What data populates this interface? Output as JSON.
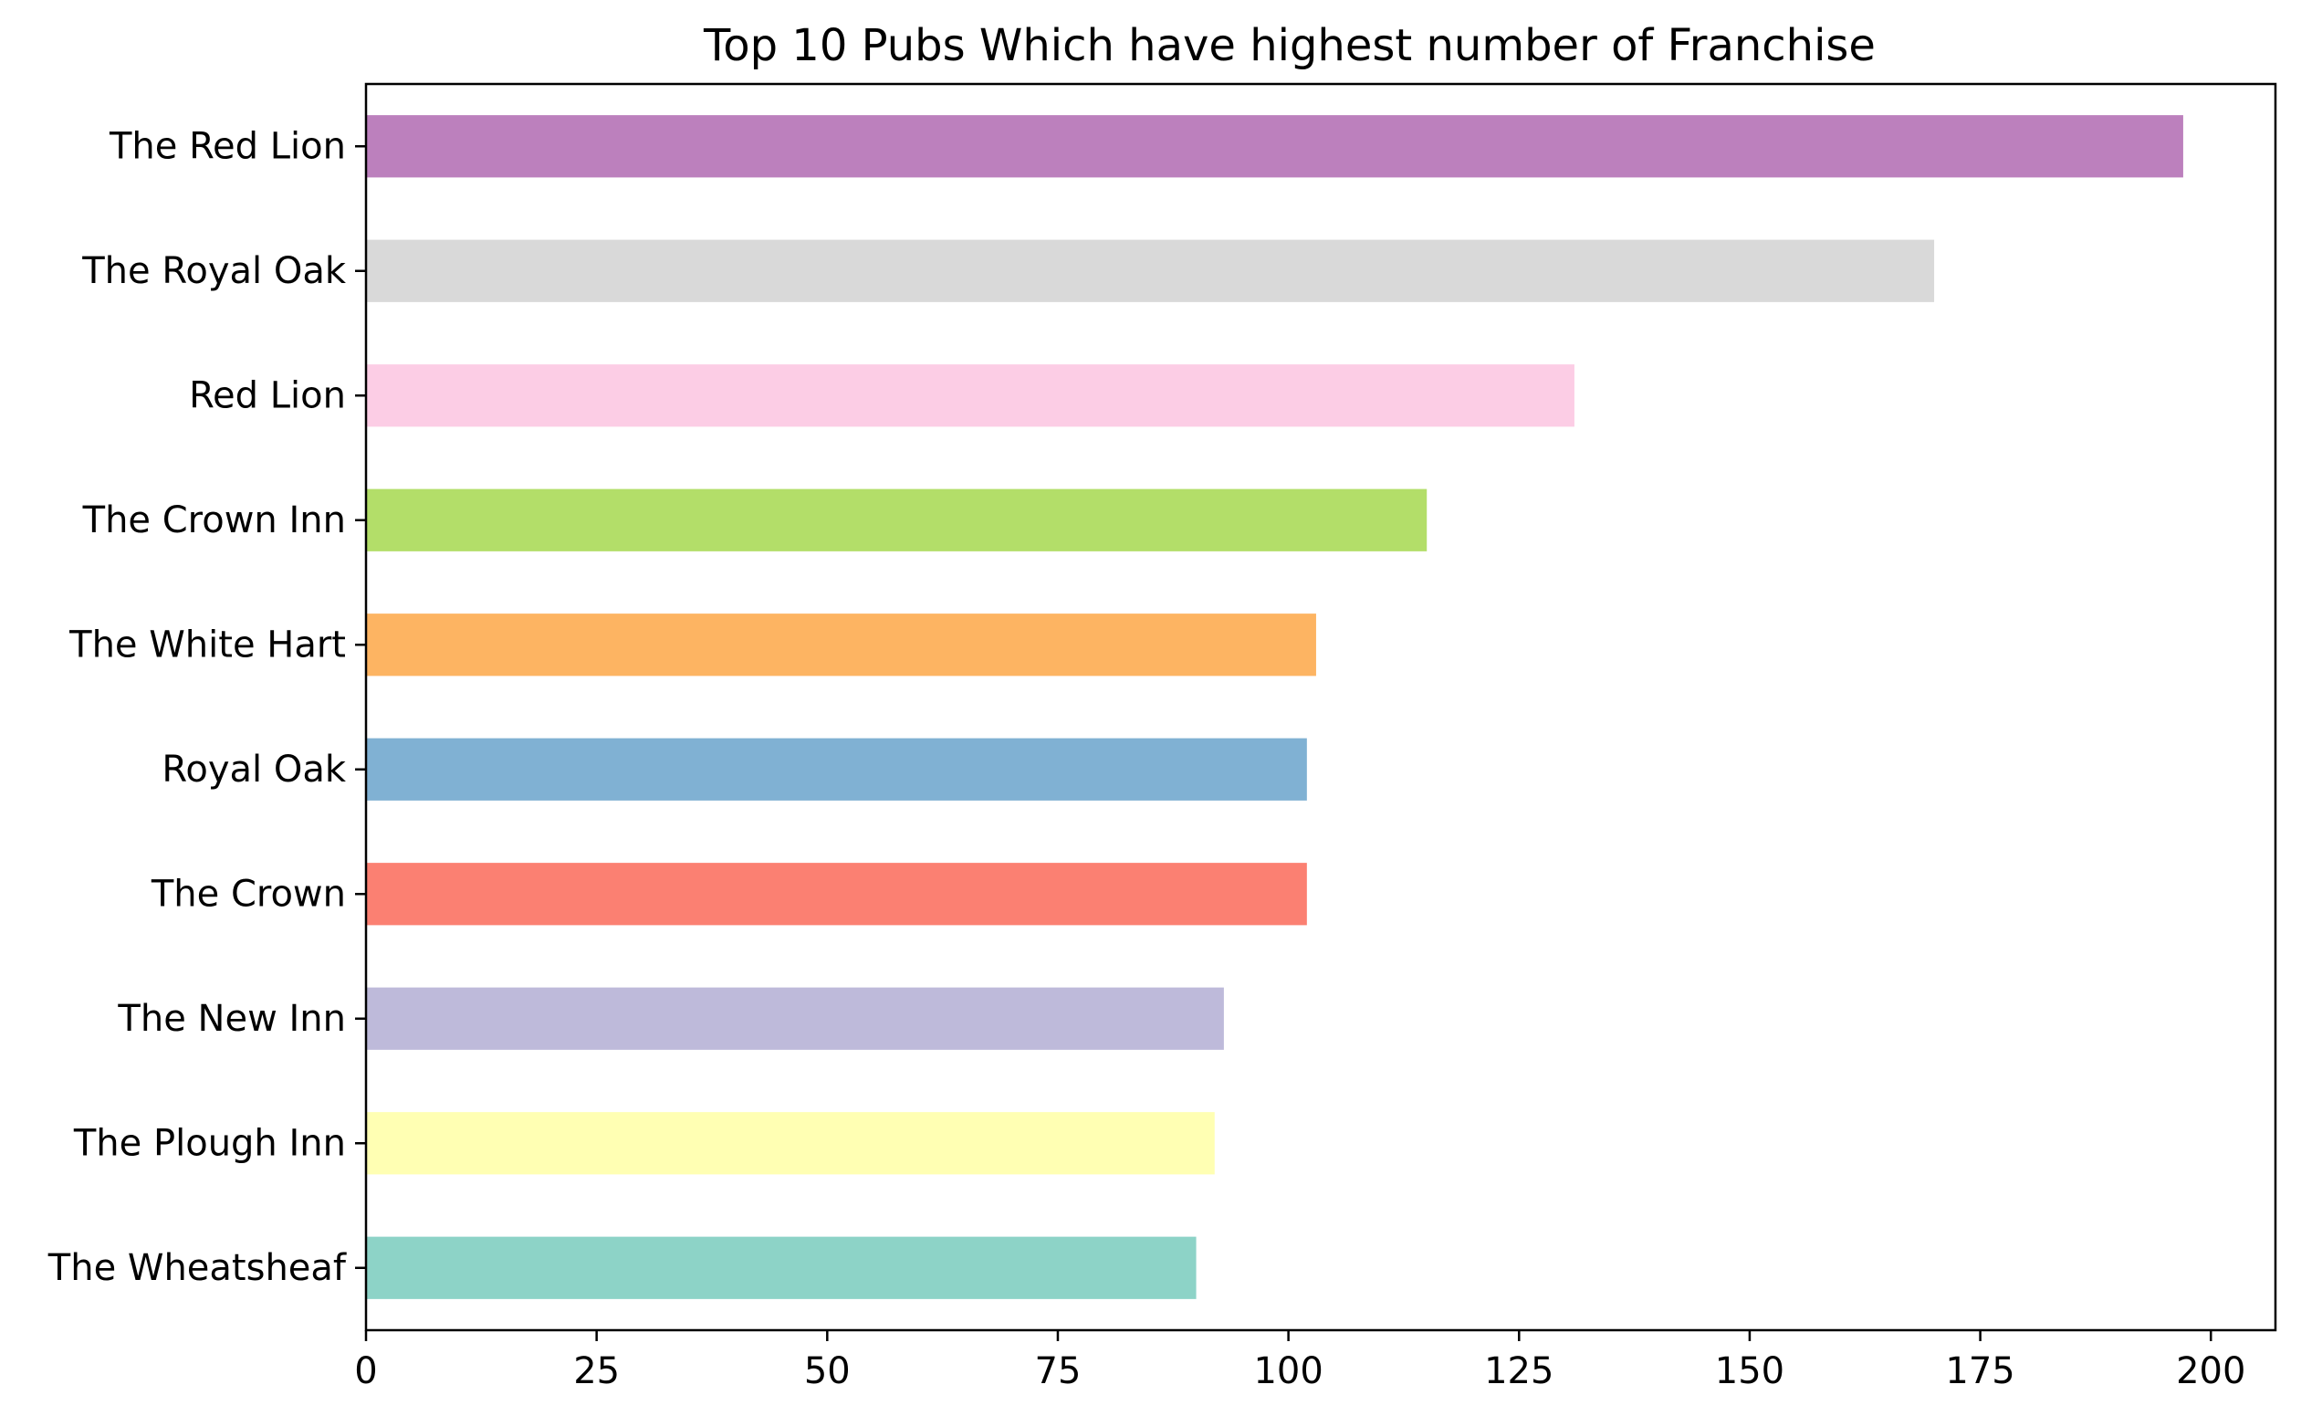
{
  "chart_data": {
    "type": "bar",
    "orientation": "horizontal",
    "title": "Top 10 Pubs Which have highest number of Franchise",
    "xlabel": "",
    "ylabel": "",
    "categories": [
      "The Red Lion",
      "The Royal Oak",
      "Red Lion",
      "The Crown Inn",
      "The White Hart",
      "Royal Oak",
      "The Crown",
      "The New Inn",
      "The Plough Inn",
      "The Wheatsheaf"
    ],
    "values": [
      197,
      170,
      131,
      115,
      103,
      102,
      102,
      93,
      92,
      90
    ],
    "colors": [
      "#bc80bd",
      "#d9d9d9",
      "#fccde5",
      "#b3de69",
      "#fdb462",
      "#80b1d3",
      "#fb8072",
      "#bebada",
      "#ffffb3",
      "#8dd3c7"
    ],
    "xlim": [
      0,
      207
    ],
    "xticks": [
      0,
      25,
      50,
      75,
      100,
      125,
      150,
      175,
      200
    ],
    "grid": false,
    "legend": "none"
  }
}
